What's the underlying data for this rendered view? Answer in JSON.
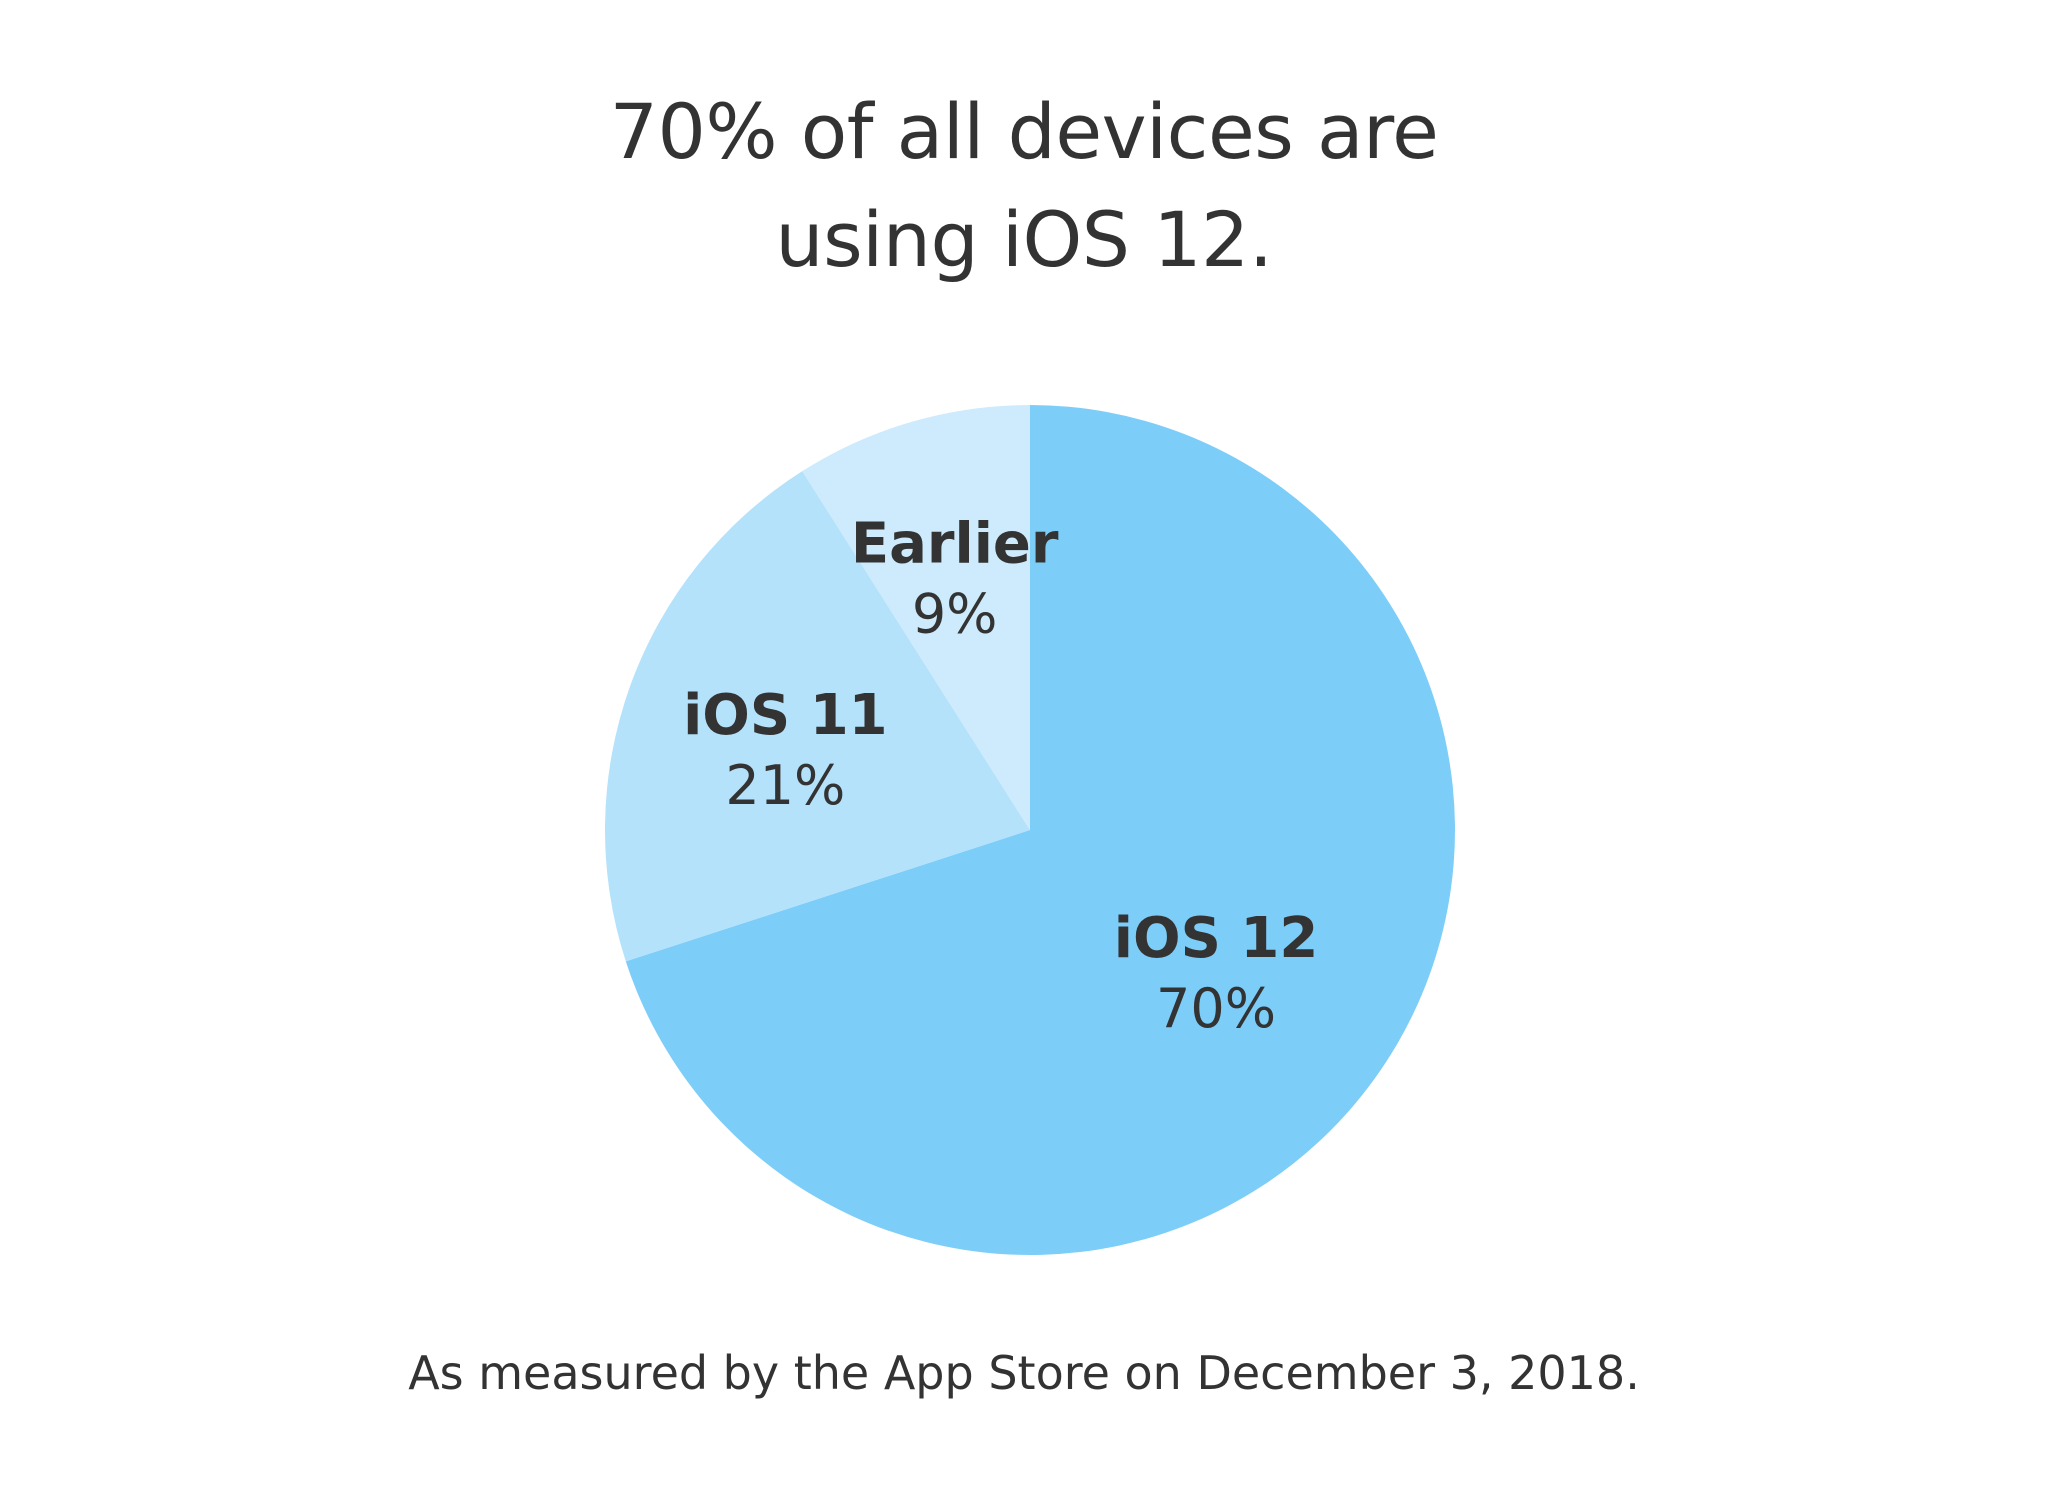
{
  "chart_data": {
    "type": "pie",
    "title_lines": [
      "70% of all devices are",
      "using iOS 12."
    ],
    "categories": [
      "iOS 12",
      "iOS 11",
      "Earlier"
    ],
    "values": [
      70,
      21,
      9
    ],
    "value_labels": [
      "70%",
      "21%",
      "9%"
    ],
    "colors": [
      "#7dcdf9",
      "#b4e2fb",
      "#cdebfc"
    ],
    "start_angle": "12 o'clock",
    "direction": "clockwise",
    "footnote": "As measured by the App Store on December 3, 2018."
  }
}
